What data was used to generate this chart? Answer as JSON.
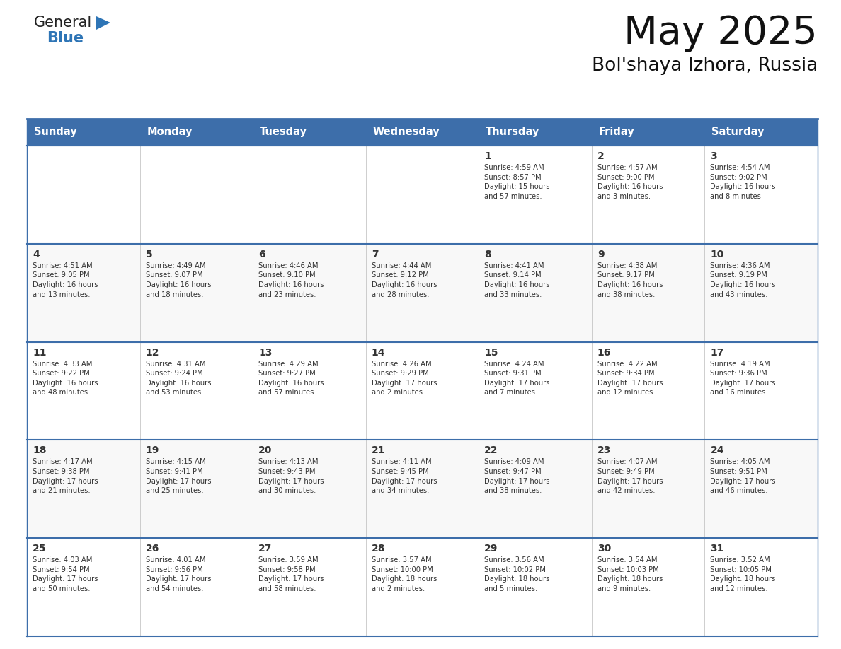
{
  "title": "May 2025",
  "subtitle": "Bol'shaya Izhora, Russia",
  "days_of_week": [
    "Sunday",
    "Monday",
    "Tuesday",
    "Wednesday",
    "Thursday",
    "Friday",
    "Saturday"
  ],
  "header_bg": "#3D6EAA",
  "header_text": "#FFFFFF",
  "row_line_color": "#3D6EAA",
  "text_color": "#333333",
  "calendar_data": [
    [
      {
        "day": "",
        "info": ""
      },
      {
        "day": "",
        "info": ""
      },
      {
        "day": "",
        "info": ""
      },
      {
        "day": "",
        "info": ""
      },
      {
        "day": "1",
        "info": "Sunrise: 4:59 AM\nSunset: 8:57 PM\nDaylight: 15 hours\nand 57 minutes."
      },
      {
        "day": "2",
        "info": "Sunrise: 4:57 AM\nSunset: 9:00 PM\nDaylight: 16 hours\nand 3 minutes."
      },
      {
        "day": "3",
        "info": "Sunrise: 4:54 AM\nSunset: 9:02 PM\nDaylight: 16 hours\nand 8 minutes."
      }
    ],
    [
      {
        "day": "4",
        "info": "Sunrise: 4:51 AM\nSunset: 9:05 PM\nDaylight: 16 hours\nand 13 minutes."
      },
      {
        "day": "5",
        "info": "Sunrise: 4:49 AM\nSunset: 9:07 PM\nDaylight: 16 hours\nand 18 minutes."
      },
      {
        "day": "6",
        "info": "Sunrise: 4:46 AM\nSunset: 9:10 PM\nDaylight: 16 hours\nand 23 minutes."
      },
      {
        "day": "7",
        "info": "Sunrise: 4:44 AM\nSunset: 9:12 PM\nDaylight: 16 hours\nand 28 minutes."
      },
      {
        "day": "8",
        "info": "Sunrise: 4:41 AM\nSunset: 9:14 PM\nDaylight: 16 hours\nand 33 minutes."
      },
      {
        "day": "9",
        "info": "Sunrise: 4:38 AM\nSunset: 9:17 PM\nDaylight: 16 hours\nand 38 minutes."
      },
      {
        "day": "10",
        "info": "Sunrise: 4:36 AM\nSunset: 9:19 PM\nDaylight: 16 hours\nand 43 minutes."
      }
    ],
    [
      {
        "day": "11",
        "info": "Sunrise: 4:33 AM\nSunset: 9:22 PM\nDaylight: 16 hours\nand 48 minutes."
      },
      {
        "day": "12",
        "info": "Sunrise: 4:31 AM\nSunset: 9:24 PM\nDaylight: 16 hours\nand 53 minutes."
      },
      {
        "day": "13",
        "info": "Sunrise: 4:29 AM\nSunset: 9:27 PM\nDaylight: 16 hours\nand 57 minutes."
      },
      {
        "day": "14",
        "info": "Sunrise: 4:26 AM\nSunset: 9:29 PM\nDaylight: 17 hours\nand 2 minutes."
      },
      {
        "day": "15",
        "info": "Sunrise: 4:24 AM\nSunset: 9:31 PM\nDaylight: 17 hours\nand 7 minutes."
      },
      {
        "day": "16",
        "info": "Sunrise: 4:22 AM\nSunset: 9:34 PM\nDaylight: 17 hours\nand 12 minutes."
      },
      {
        "day": "17",
        "info": "Sunrise: 4:19 AM\nSunset: 9:36 PM\nDaylight: 17 hours\nand 16 minutes."
      }
    ],
    [
      {
        "day": "18",
        "info": "Sunrise: 4:17 AM\nSunset: 9:38 PM\nDaylight: 17 hours\nand 21 minutes."
      },
      {
        "day": "19",
        "info": "Sunrise: 4:15 AM\nSunset: 9:41 PM\nDaylight: 17 hours\nand 25 minutes."
      },
      {
        "day": "20",
        "info": "Sunrise: 4:13 AM\nSunset: 9:43 PM\nDaylight: 17 hours\nand 30 minutes."
      },
      {
        "day": "21",
        "info": "Sunrise: 4:11 AM\nSunset: 9:45 PM\nDaylight: 17 hours\nand 34 minutes."
      },
      {
        "day": "22",
        "info": "Sunrise: 4:09 AM\nSunset: 9:47 PM\nDaylight: 17 hours\nand 38 minutes."
      },
      {
        "day": "23",
        "info": "Sunrise: 4:07 AM\nSunset: 9:49 PM\nDaylight: 17 hours\nand 42 minutes."
      },
      {
        "day": "24",
        "info": "Sunrise: 4:05 AM\nSunset: 9:51 PM\nDaylight: 17 hours\nand 46 minutes."
      }
    ],
    [
      {
        "day": "25",
        "info": "Sunrise: 4:03 AM\nSunset: 9:54 PM\nDaylight: 17 hours\nand 50 minutes."
      },
      {
        "day": "26",
        "info": "Sunrise: 4:01 AM\nSunset: 9:56 PM\nDaylight: 17 hours\nand 54 minutes."
      },
      {
        "day": "27",
        "info": "Sunrise: 3:59 AM\nSunset: 9:58 PM\nDaylight: 17 hours\nand 58 minutes."
      },
      {
        "day": "28",
        "info": "Sunrise: 3:57 AM\nSunset: 10:00 PM\nDaylight: 18 hours\nand 2 minutes."
      },
      {
        "day": "29",
        "info": "Sunrise: 3:56 AM\nSunset: 10:02 PM\nDaylight: 18 hours\nand 5 minutes."
      },
      {
        "day": "30",
        "info": "Sunrise: 3:54 AM\nSunset: 10:03 PM\nDaylight: 18 hours\nand 9 minutes."
      },
      {
        "day": "31",
        "info": "Sunrise: 3:52 AM\nSunset: 10:05 PM\nDaylight: 18 hours\nand 12 minutes."
      }
    ]
  ]
}
